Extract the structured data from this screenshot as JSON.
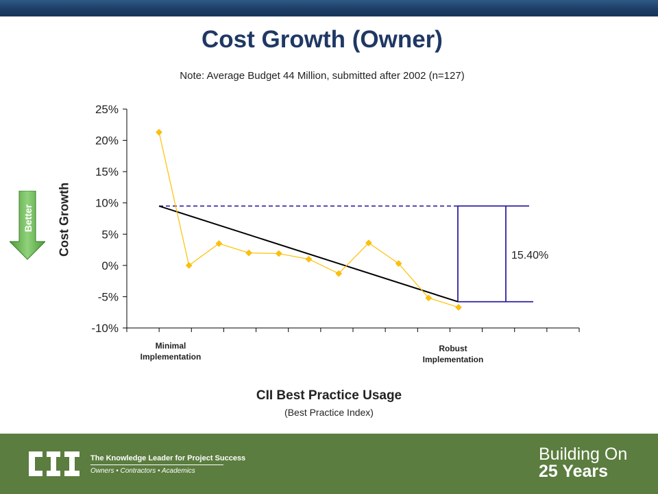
{
  "title": "Cost Growth (Owner)",
  "note": "Note:  Average Budget 44 Million, submitted after 2002 (n=127)",
  "better_label": "Better",
  "footer": {
    "tagline": "The Knowledge Leader for Project Success",
    "subtagline": "Owners • Contractors • Academics",
    "building_line1": "Building On",
    "building_line2": "25 Years",
    "logo_text": "CII"
  },
  "chart_data": {
    "type": "line",
    "title": "Cost Growth (Owner)",
    "xlabel": "CII Best Practice Usage",
    "xlabel_sub": "(Best Practice Index)",
    "ylabel": "Cost Growth",
    "ylim": [
      -10,
      25
    ],
    "yticks": [
      "-10%",
      "-5%",
      "0%",
      "5%",
      "10%",
      "15%",
      "20%",
      "25%"
    ],
    "category_labels": [
      {
        "index": 0,
        "text": "Minimal\nImplementation"
      },
      {
        "index": 10,
        "text": "Robust\nImplementation"
      }
    ],
    "series": [
      {
        "values": [
          21.3,
          0.0,
          3.5,
          2.0,
          1.9,
          1.0,
          -1.3,
          3.6,
          0.3,
          -5.2,
          -6.7
        ],
        "color": "#ffc000"
      }
    ],
    "trend_line": {
      "start": 9.5,
      "end": -5.8,
      "color": "#000000"
    },
    "reference_start_line": {
      "value": 9.5,
      "color": "#2b1fa0"
    },
    "reference_end_line": {
      "value": -5.8,
      "color": "#2b1fa0"
    },
    "difference_annotation": "15.40%",
    "grid": false
  }
}
